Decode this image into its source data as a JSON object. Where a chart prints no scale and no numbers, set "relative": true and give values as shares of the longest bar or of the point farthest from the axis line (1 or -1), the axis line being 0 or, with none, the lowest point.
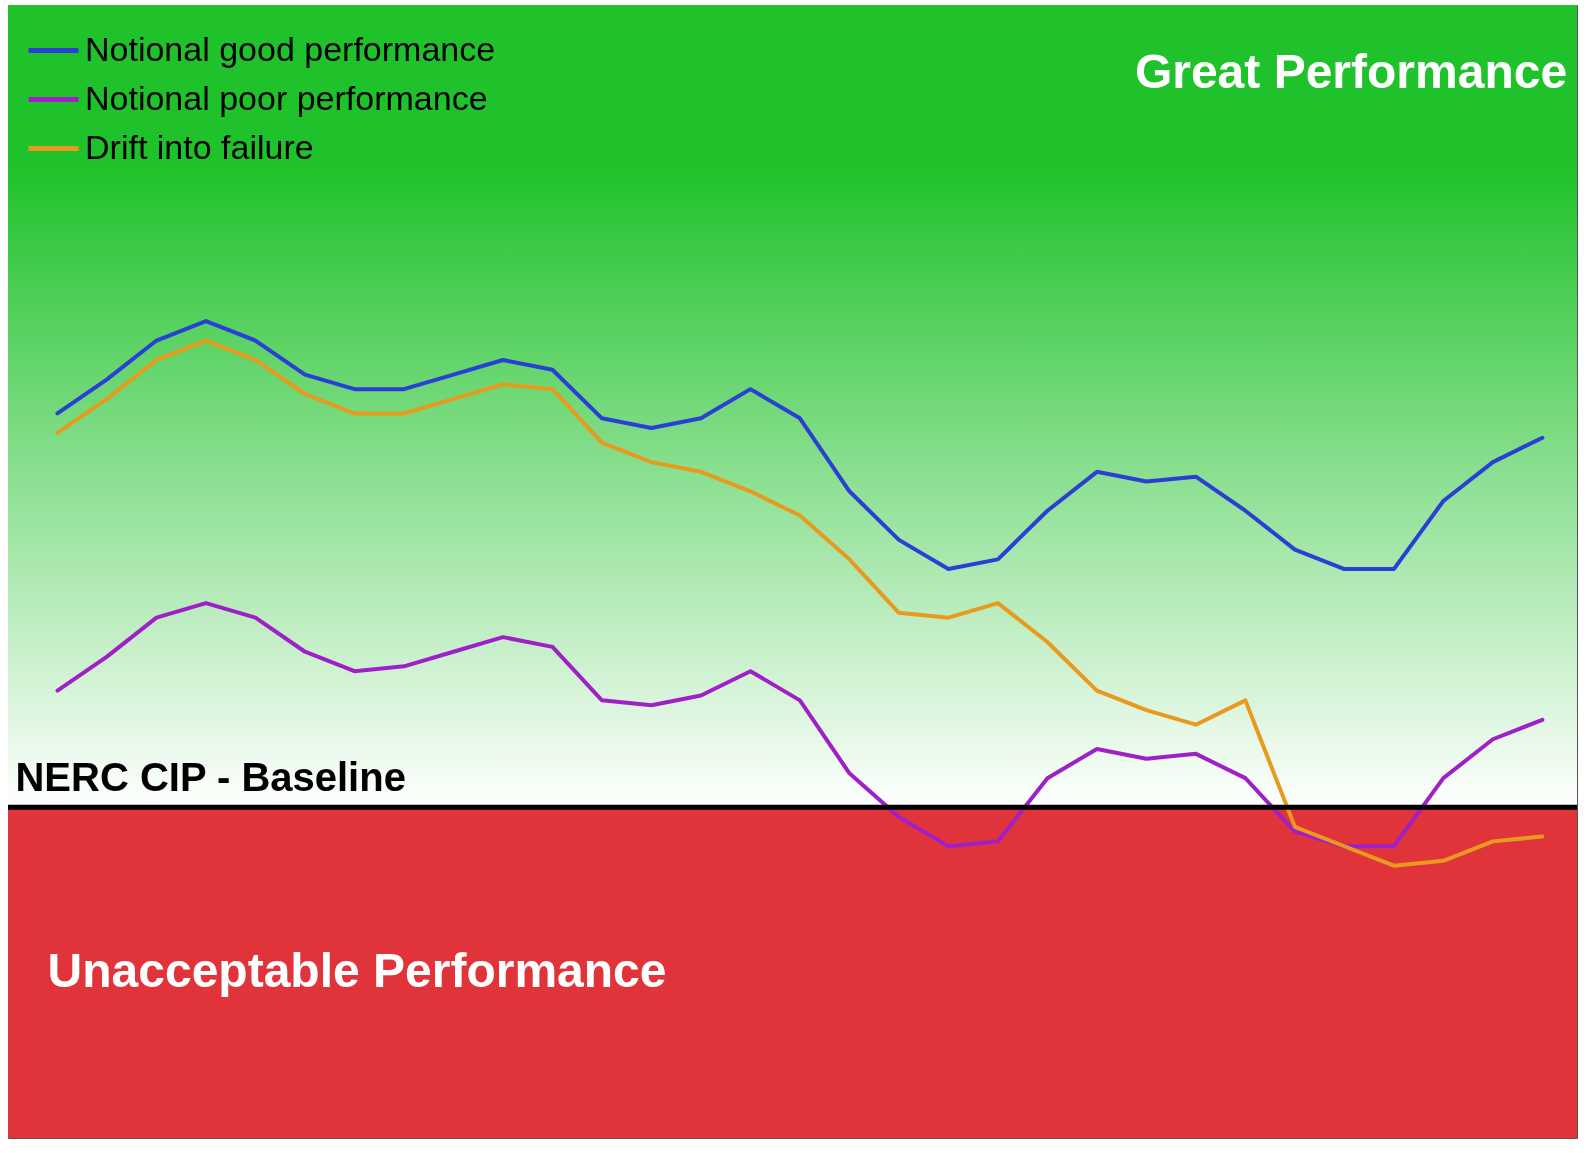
{
  "chart_data": {
    "type": "line",
    "relative": true,
    "categories": [
      null,
      null,
      null,
      null,
      null,
      null,
      null,
      null,
      null,
      null,
      null,
      null,
      null,
      null,
      null,
      null,
      null,
      null,
      null,
      null,
      null,
      null,
      null,
      null,
      null,
      null,
      null,
      null,
      null,
      null,
      null
    ],
    "series": [
      {
        "name": "Notional good performance",
        "color": "#2a3fd4",
        "values": [
          0.81,
          0.88,
          0.96,
          1.0,
          0.96,
          0.89,
          0.86,
          0.86,
          0.89,
          0.92,
          0.9,
          0.8,
          0.78,
          0.8,
          0.86,
          0.8,
          0.65,
          0.55,
          0.49,
          0.51,
          0.61,
          0.69,
          0.67,
          0.68,
          0.61,
          0.53,
          0.49,
          0.49,
          0.63,
          0.71,
          0.76
        ]
      },
      {
        "name": "Notional poor performance",
        "color": "#a020c8",
        "values": [
          0.24,
          0.31,
          0.39,
          0.42,
          0.39,
          0.32,
          0.28,
          0.29,
          0.32,
          0.35,
          0.33,
          0.22,
          0.21,
          0.23,
          0.28,
          0.22,
          0.07,
          -0.02,
          -0.08,
          -0.07,
          0.06,
          0.12,
          0.1,
          0.11,
          0.06,
          -0.05,
          -0.08,
          -0.08,
          0.06,
          0.14,
          0.18
        ]
      },
      {
        "name": "Drift into failure",
        "color": "#e89a1e",
        "values": [
          0.77,
          0.84,
          0.92,
          0.96,
          0.92,
          0.85,
          0.81,
          0.81,
          0.84,
          0.87,
          0.86,
          0.75,
          0.71,
          0.69,
          0.65,
          0.6,
          0.51,
          0.4,
          0.39,
          0.42,
          0.34,
          0.24,
          0.2,
          0.17,
          0.22,
          -0.04,
          -0.08,
          -0.12,
          -0.11,
          -0.07,
          -0.06
        ]
      }
    ],
    "ref_lines": [
      {
        "axis": "y",
        "value": 0,
        "label": "NERC CIP - Baseline",
        "color": "#000000"
      }
    ],
    "bands": [
      {
        "axis": "y",
        "from": 0,
        "to": 1.65,
        "label": "Great Performance",
        "color": "#1fc22a"
      },
      {
        "axis": "y",
        "from": -0.68,
        "to": 0,
        "label": "Unacceptable Performance",
        "color": "#e0343a"
      }
    ],
    "legend": "top left",
    "line_style": "solid",
    "marker": "none"
  }
}
